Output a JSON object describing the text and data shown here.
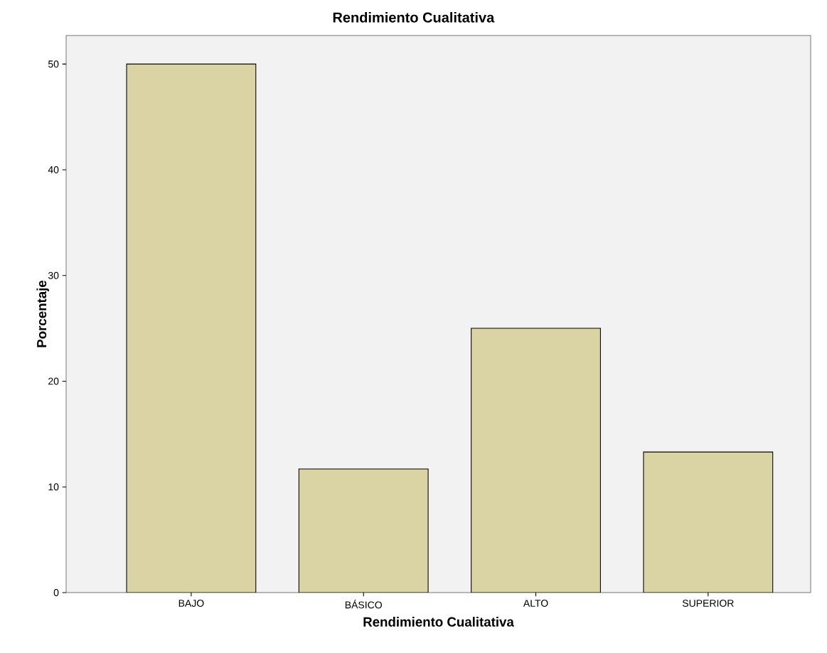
{
  "chart_data": {
    "type": "bar",
    "title": "Rendimiento Cualitativa",
    "xlabel": "Rendimiento Cualitativa",
    "ylabel": "Porcentaje",
    "categories": [
      "BAJO",
      "BÁSICO",
      "ALTO",
      "SUPERIOR"
    ],
    "values": [
      50,
      11.7,
      25,
      13.3
    ],
    "color": "#dad4a4",
    "ylim": [
      0,
      52.7
    ],
    "yticks": [
      0,
      10,
      20,
      30,
      40,
      50
    ]
  }
}
